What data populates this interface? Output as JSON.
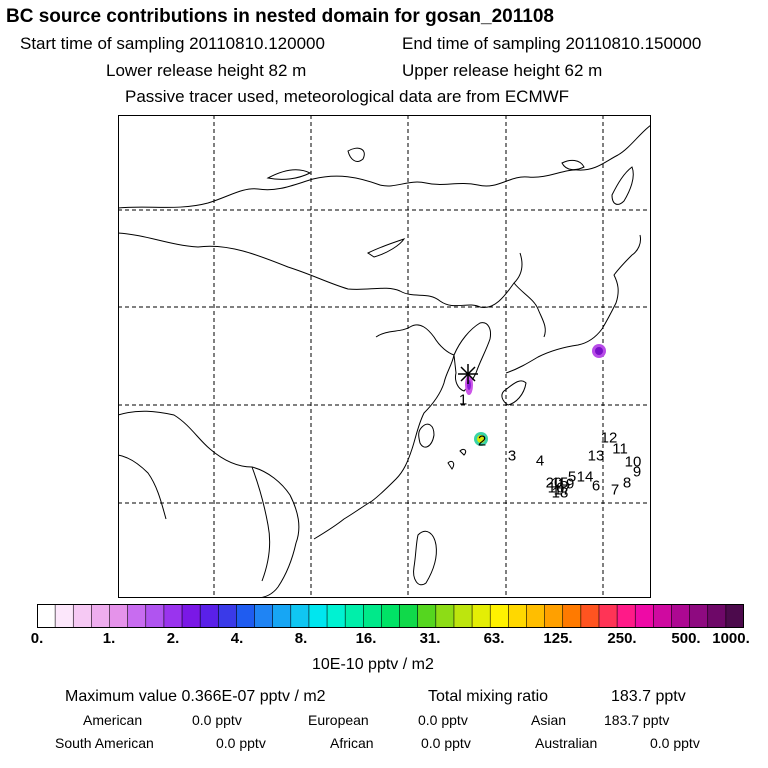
{
  "header": {
    "title": "BC  source contributions in nested domain for gosan_201108",
    "start_label": "Start time of sampling 20110810.120000",
    "end_label": "End time of sampling 20110810.150000",
    "lower_label": "Lower release height   82 m",
    "upper_label": "Upper release height   62 m",
    "tracer_note": "Passive tracer used, meteorological data are from ECMWF"
  },
  "map": {
    "site_marker": "asterisk-icon",
    "trajectory_labels": [
      "1",
      "2",
      "3",
      "4",
      "5",
      "6",
      "7",
      "8",
      "9",
      "10",
      "11",
      "12",
      "13",
      "14",
      "15",
      "16",
      "17",
      "18",
      "19",
      "20"
    ]
  },
  "colorbar": {
    "ticks": [
      "0.",
      "1.",
      "2.",
      "4.",
      "8.",
      "16.",
      "31.",
      "63.",
      "125.",
      "250.",
      "500.",
      "1000."
    ],
    "unit": "10E-10 pptv / m2",
    "colors": [
      "#ffffff",
      "#fce7fb",
      "#f6c9f4",
      "#eeadee",
      "#e593ea",
      "#c86cf0",
      "#b054f0",
      "#9a34ee",
      "#7a18e6",
      "#5a20e8",
      "#3a3ae8",
      "#1f5cf0",
      "#1f84f4",
      "#17a6f4",
      "#10c6f2",
      "#00e6ef",
      "#00f2d2",
      "#00efaa",
      "#00e98a",
      "#00e366",
      "#10d94a",
      "#55d61f",
      "#8ddc16",
      "#bde50e",
      "#e4ee05",
      "#fff200",
      "#ffd800",
      "#ffbe00",
      "#ffa000",
      "#ff7a00",
      "#ff5420",
      "#ff3456",
      "#ff1a88",
      "#ee0aa6",
      "#cf0aa0",
      "#ad0892",
      "#8e0a80",
      "#6e0868",
      "#4c0a4c"
    ]
  },
  "stats": {
    "max_label": "Maximum value  0.366E-07 pptv / m2",
    "total_label": "Total mixing ratio",
    "total_value": "183.7 pptv",
    "american_label": "American",
    "american_value": "0.0 pptv",
    "european_label": "European",
    "european_value": "0.0 pptv",
    "asian_label": "Asian",
    "asian_value": "183.7 pptv",
    "south_american_label": "South American",
    "south_american_value": "0.0 pptv",
    "african_label": "African",
    "african_value": "0.0 pptv",
    "australian_label": "Australian",
    "australian_value": "0.0 pptv"
  }
}
